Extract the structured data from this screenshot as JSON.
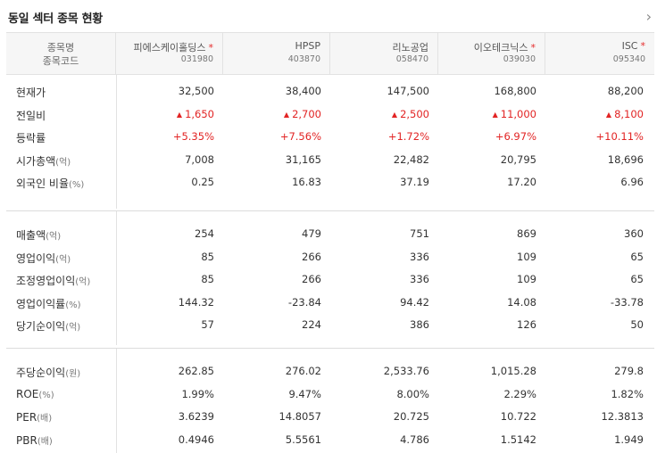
{
  "header": {
    "title": "동일 섹터 종목 현황",
    "more_icon": "chevron-right-icon"
  },
  "table": {
    "head": {
      "name_label": "종목명",
      "code_label": "종목코드"
    },
    "stocks": [
      {
        "name": "피에스케이홀딩스",
        "code": "031980",
        "star": "*"
      },
      {
        "name": "HPSP",
        "code": "403870",
        "star": ""
      },
      {
        "name": "리노공업",
        "code": "058470",
        "star": ""
      },
      {
        "name": "이오테크닉스",
        "code": "039030",
        "star": "*"
      },
      {
        "name": "ISC",
        "code": "095340",
        "star": "*"
      }
    ],
    "groups": [
      {
        "rows": [
          {
            "label": "현재가",
            "unit": "",
            "values": [
              "32,500",
              "38,400",
              "147,500",
              "168,800",
              "88,200"
            ],
            "style": ""
          },
          {
            "label": "전일비",
            "unit": "",
            "values": [
              "1,650",
              "2,700",
              "2,500",
              "11,000",
              "8,100"
            ],
            "style": "up"
          },
          {
            "label": "등락률",
            "unit": "",
            "values": [
              "+5.35%",
              "+7.56%",
              "+1.72%",
              "+6.97%",
              "+10.11%"
            ],
            "style": "red"
          },
          {
            "label": "시가총액",
            "unit": "(억)",
            "values": [
              "7,008",
              "31,165",
              "22,482",
              "20,795",
              "18,696"
            ],
            "style": ""
          },
          {
            "label": "외국인 비율",
            "unit": "(%)",
            "values": [
              "0.25",
              "16.83",
              "37.19",
              "17.20",
              "6.96"
            ],
            "style": ""
          }
        ]
      },
      {
        "rows": [
          {
            "label": "매출액",
            "unit": "(억)",
            "values": [
              "254",
              "479",
              "751",
              "869",
              "360"
            ],
            "style": ""
          },
          {
            "label": "영업이익",
            "unit": "(억)",
            "values": [
              "85",
              "266",
              "336",
              "109",
              "65"
            ],
            "style": ""
          },
          {
            "label": "조정영업이익",
            "unit": "(억)",
            "values": [
              "85",
              "266",
              "336",
              "109",
              "65"
            ],
            "style": ""
          },
          {
            "label": "영업이익률",
            "unit": "(%)",
            "values": [
              "144.32",
              "-23.84",
              "94.42",
              "14.08",
              "-33.78"
            ],
            "style": ""
          },
          {
            "label": "당기순이익",
            "unit": "(억)",
            "values": [
              "57",
              "224",
              "386",
              "126",
              "50"
            ],
            "style": ""
          }
        ]
      },
      {
        "rows": [
          {
            "label": "주당순이익",
            "unit": "(원)",
            "values": [
              "262.85",
              "276.02",
              "2,533.76",
              "1,015.28",
              "279.8"
            ],
            "style": ""
          },
          {
            "label": "ROE",
            "unit": "(%)",
            "values": [
              "1.99%",
              "9.47%",
              "8.00%",
              "2.29%",
              "1.82%"
            ],
            "style": ""
          },
          {
            "label": "PER",
            "unit": "(배)",
            "values": [
              "3.6239",
              "14.8057",
              "20.725",
              "10.722",
              "12.3813"
            ],
            "style": ""
          },
          {
            "label": "PBR",
            "unit": "(배)",
            "values": [
              "0.4946",
              "5.5561",
              "4.786",
              "1.5142",
              "1.949"
            ],
            "style": ""
          }
        ]
      }
    ]
  },
  "colors": {
    "up": "#e22424",
    "header_bg": "#f6f6f6",
    "border": "#e2e2e2"
  }
}
